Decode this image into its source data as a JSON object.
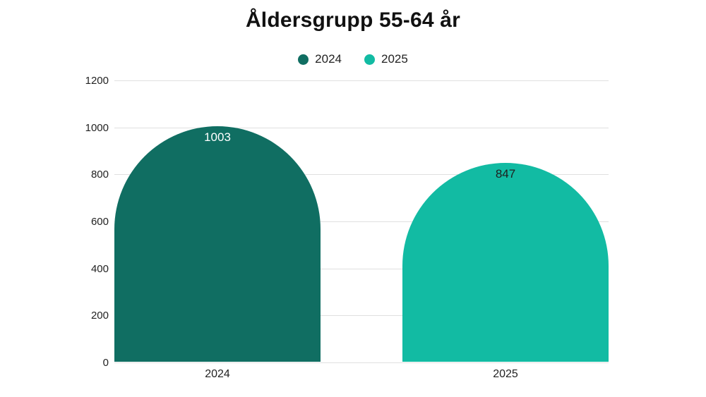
{
  "title": "Åldersgrupp 55-64 år",
  "legend": [
    {
      "label": "2024",
      "color": "#106e62"
    },
    {
      "label": "2025",
      "color": "#12bba3"
    }
  ],
  "chart_data": {
    "type": "bar",
    "title": "Åldersgrupp 55-64 år",
    "categories": [
      "2024",
      "2025"
    ],
    "values": [
      1003,
      847
    ],
    "bar_colors": [
      "#106e62",
      "#12bba3"
    ],
    "value_label_colors": [
      "#ffffff",
      "#1f1f1f"
    ],
    "value_labels": [
      "1003",
      "847"
    ],
    "xlabel": "",
    "ylabel": "",
    "ylim": [
      0,
      1200
    ],
    "yticks": [
      0,
      200,
      400,
      600,
      800,
      1000,
      1200
    ],
    "grid": true,
    "legend_position": "top",
    "bar_top_shape": "semicircle"
  },
  "colors": {
    "background": "#ffffff",
    "grid": "#e0e0e0",
    "text": "#222222",
    "title_text": "#111111"
  }
}
